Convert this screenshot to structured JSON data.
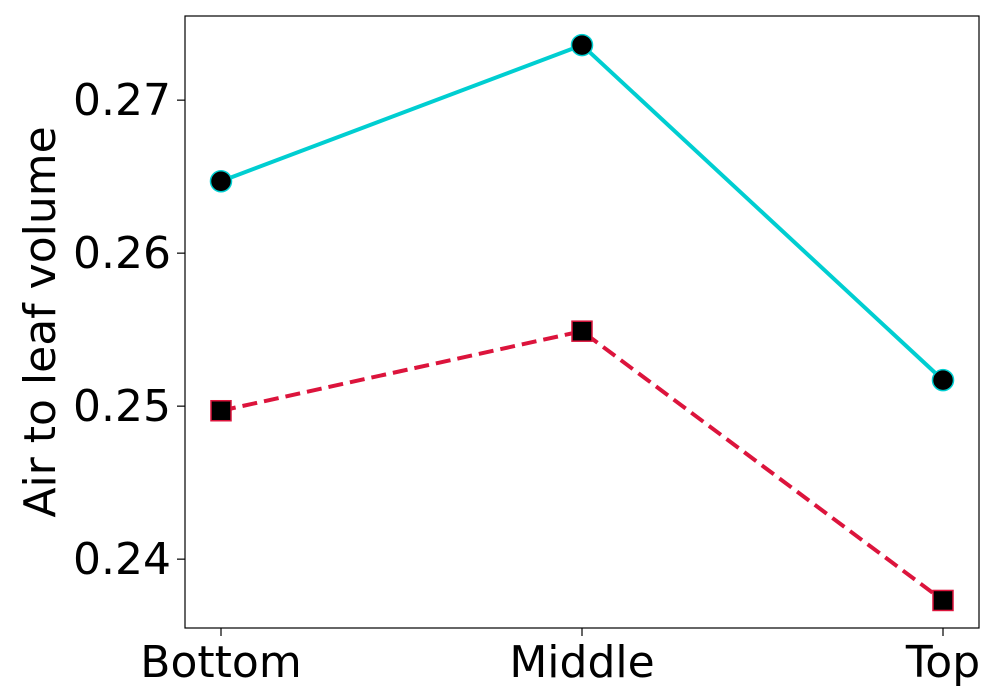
{
  "chart_data": {
    "type": "line",
    "title": "",
    "xlabel": "",
    "ylabel": "Air to leaf volume",
    "categories": [
      "Bottom",
      "Middle",
      "Top"
    ],
    "ylim": [
      0.2355,
      0.2755
    ],
    "yticks": [
      "0.24",
      "0.25",
      "0.26",
      "0.27"
    ],
    "grid": false,
    "legend": "none",
    "series": [
      {
        "values": [
          0.2647,
          0.2736,
          0.2517
        ],
        "color": "#00CED1",
        "line_style": "solid",
        "marker": "circle",
        "marker_color": "#000000"
      },
      {
        "values": [
          0.2497,
          0.2549,
          0.2373
        ],
        "color": "#DC143C",
        "line_style": "dashed",
        "marker": "square",
        "marker_color": "#000000"
      }
    ]
  }
}
